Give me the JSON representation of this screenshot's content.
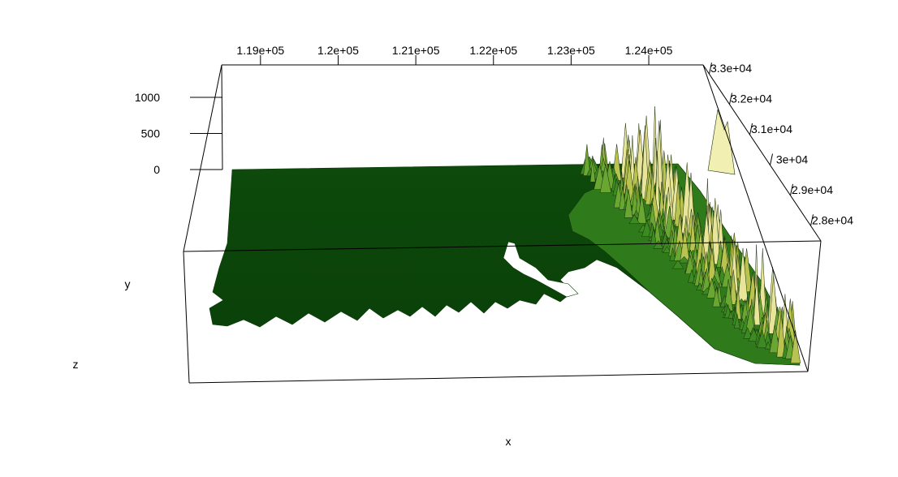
{
  "chart_data": {
    "type": "surface3d",
    "title": "",
    "xlabel": "x",
    "ylabel": "y",
    "zlabel": "z",
    "x_ticks": [
      "1.19e+05",
      "1.2e+05",
      "1.21e+05",
      "1.22e+05",
      "1.23e+05",
      "1.24e+05"
    ],
    "x_tick_values": [
      119000,
      120000,
      121000,
      122000,
      123000,
      124000
    ],
    "y_ticks": [
      "3.3e+04",
      "3.2e+04",
      "3.1e+04",
      "3e+04",
      "2.9e+04",
      "2.8e+04"
    ],
    "y_tick_values": [
      33000,
      32000,
      31000,
      30000,
      29000,
      28000
    ],
    "z_ticks": [
      "1000",
      "500",
      "0"
    ],
    "z_tick_values": [
      1000,
      500,
      0
    ],
    "xlim": [
      118500,
      124700
    ],
    "ylim": [
      27500,
      33300
    ],
    "zlim": [
      0,
      1100
    ],
    "grid": false,
    "legend": "none",
    "colors": {
      "low": "#0a4a0a",
      "mid": "#2e8b1f",
      "high": "#d7d766",
      "peak": "#f2f0b0",
      "box": "#000000"
    }
  }
}
